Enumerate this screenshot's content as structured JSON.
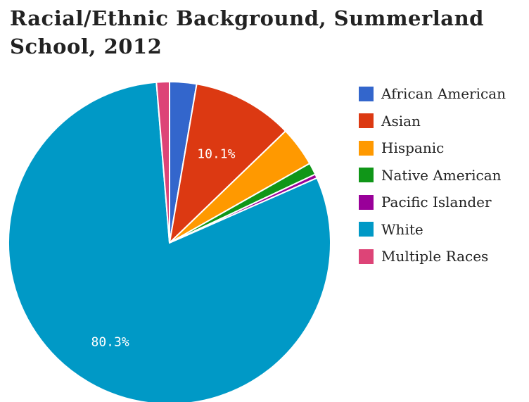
{
  "chart_data": {
    "type": "pie",
    "title": "Racial/Ethnic Background, Summerland School, 2012",
    "legend_position": "right",
    "slices": [
      {
        "label": "African American",
        "value": 2.7,
        "color": "#3366cc",
        "display": ""
      },
      {
        "label": "Asian",
        "value": 10.1,
        "color": "#dc3912",
        "display": "10.1%"
      },
      {
        "label": "Hispanic",
        "value": 4.0,
        "color": "#ff9900",
        "display": ""
      },
      {
        "label": "Native American",
        "value": 1.2,
        "color": "#109618",
        "display": ""
      },
      {
        "label": "Pacific Islander",
        "value": 0.4,
        "color": "#990099",
        "display": ""
      },
      {
        "label": "White",
        "value": 80.3,
        "color": "#0099c6",
        "display": "80.3%"
      },
      {
        "label": "Multiple Races",
        "value": 1.3,
        "color": "#dd4477",
        "display": ""
      }
    ]
  }
}
